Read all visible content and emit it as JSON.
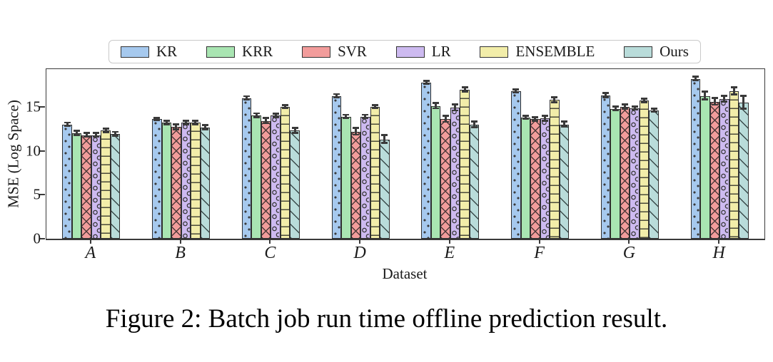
{
  "figure": {
    "caption": "Figure 2: Batch job run time offline prediction result."
  },
  "chart_data": {
    "type": "bar",
    "title": "",
    "xlabel": "Dataset",
    "ylabel": "MSE (Log Space)",
    "ylim": [
      0,
      19.3
    ],
    "yticks": [
      0,
      5,
      10,
      15
    ],
    "grid": false,
    "legend_position": "top-center",
    "bar_edge_color": "#2f2f2f",
    "categories": [
      "A",
      "B",
      "C",
      "D",
      "E",
      "F",
      "G",
      "H"
    ],
    "series": [
      {
        "name": "KR",
        "color": "#a6c9ee",
        "hatch": "dots",
        "values": [
          13.0,
          13.6,
          16.0,
          16.25,
          17.75,
          16.8,
          16.3,
          18.2
        ],
        "errors": [
          0.3,
          0.25,
          0.3,
          0.3,
          0.3,
          0.3,
          0.35,
          0.3
        ]
      },
      {
        "name": "KRR",
        "color": "#a9e5b2",
        "hatch": "none",
        "values": [
          12.0,
          13.2,
          14.0,
          13.9,
          15.1,
          13.8,
          14.8,
          16.25
        ],
        "errors": [
          0.35,
          0.3,
          0.35,
          0.3,
          0.4,
          0.3,
          0.3,
          0.55
        ]
      },
      {
        "name": "SVR",
        "color": "#f29c9b",
        "hatch": "cross",
        "values": [
          11.8,
          12.7,
          13.4,
          12.2,
          13.6,
          13.6,
          15.0,
          15.6
        ],
        "errors": [
          0.3,
          0.4,
          0.4,
          0.5,
          0.45,
          0.3,
          0.35,
          0.5
        ]
      },
      {
        "name": "LR",
        "color": "#cdbaf0",
        "hatch": "circles",
        "values": [
          11.8,
          13.2,
          14.0,
          13.9,
          14.9,
          13.7,
          14.85,
          15.9
        ],
        "errors": [
          0.3,
          0.3,
          0.3,
          0.3,
          0.45,
          0.4,
          0.3,
          0.45
        ]
      },
      {
        "name": "ENSEMBLE",
        "color": "#f2eda9",
        "hatch": "hlines",
        "values": [
          12.3,
          13.2,
          15.0,
          15.0,
          16.95,
          15.8,
          15.7,
          16.8
        ],
        "errors": [
          0.3,
          0.3,
          0.3,
          0.3,
          0.35,
          0.4,
          0.3,
          0.5
        ]
      },
      {
        "name": "Ours",
        "color": "#b9dcda",
        "hatch": "diag",
        "values": [
          11.9,
          12.65,
          12.3,
          11.3,
          13.0,
          13.0,
          14.6,
          15.5
        ],
        "errors": [
          0.35,
          0.35,
          0.4,
          0.55,
          0.45,
          0.4,
          0.3,
          0.85
        ]
      }
    ]
  }
}
